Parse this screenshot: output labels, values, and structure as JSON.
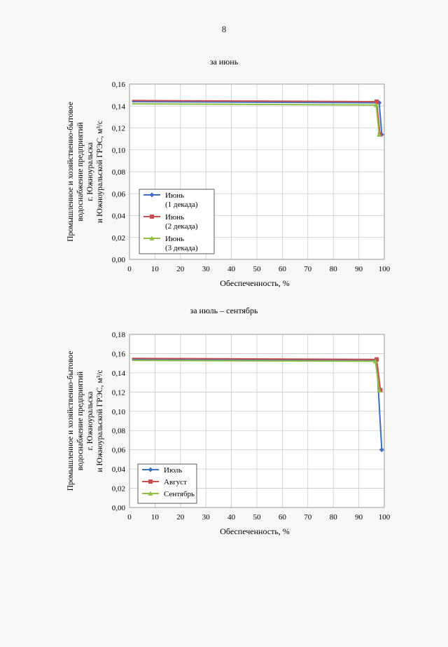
{
  "page_number": "8",
  "chart_data": [
    {
      "type": "line",
      "title": "за июнь",
      "xlabel": "Обеспеченность, %",
      "ylabel": [
        "Промышленное и хозяйственно-бытовое",
        "водоснабжение предприятий",
        "г. Южноуральска",
        "и Южноуральской ГРЭС, м³/с"
      ],
      "xlim": [
        0,
        100
      ],
      "ylim": [
        0,
        0.16
      ],
      "xticks": [
        0,
        10,
        20,
        30,
        40,
        50,
        60,
        70,
        80,
        90,
        100
      ],
      "xtick_labels": [
        "0",
        "10",
        "20",
        "30",
        "40",
        "50",
        "60",
        "70",
        "80",
        "90",
        "100"
      ],
      "yticks": [
        0,
        0.02,
        0.04,
        0.06,
        0.08,
        0.1,
        0.12,
        0.14,
        0.16
      ],
      "ytick_labels": [
        "0,00",
        "0,02",
        "0,04",
        "0,06",
        "0,08",
        "0,10",
        "0,12",
        "0,14",
        "0,16"
      ],
      "grid": true,
      "legend_position": "bottom-left",
      "series": [
        {
          "name_lines": [
            "Июнь",
            "(1 декада)"
          ],
          "color": "#3a6fc4",
          "marker": "diamond",
          "x": [
            1,
            98,
            99
          ],
          "y": [
            0.144,
            0.143,
            0.114
          ]
        },
        {
          "name_lines": [
            "Июнь",
            "(2 декада)"
          ],
          "color": "#c8504c",
          "marker": "square",
          "x": [
            1,
            97,
            98.3
          ],
          "y": [
            0.145,
            0.144,
            0.114
          ]
        },
        {
          "name_lines": [
            "Июнь",
            "(3 декада)"
          ],
          "color": "#8fbf45",
          "marker": "triangle",
          "x": [
            1,
            96.8,
            98
          ],
          "y": [
            0.142,
            0.141,
            0.114
          ]
        }
      ]
    },
    {
      "type": "line",
      "title": "за июль – сентябрь",
      "xlabel": "Обеспеченность, %",
      "ylabel": [
        "Промышленное и хозяйственно-бытовое",
        "водоснабжение предприятий",
        "г. Южноуральска",
        "и Южноуральской ГРЭС, м³/с"
      ],
      "xlim": [
        0,
        100
      ],
      "ylim": [
        0,
        0.18
      ],
      "xticks": [
        0,
        10,
        20,
        30,
        40,
        50,
        60,
        70,
        80,
        90,
        100
      ],
      "xtick_labels": [
        "0",
        "10",
        "20",
        "30",
        "40",
        "50",
        "60",
        "70",
        "80",
        "90",
        "100"
      ],
      "yticks": [
        0,
        0.02,
        0.04,
        0.06,
        0.08,
        0.1,
        0.12,
        0.14,
        0.16,
        0.18
      ],
      "ytick_labels": [
        "0,00",
        "0,02",
        "0,04",
        "0,06",
        "0,08",
        "0,10",
        "0,12",
        "0,14",
        "0,16",
        "0,18"
      ],
      "grid": true,
      "legend_position": "bottom-right",
      "series": [
        {
          "name_lines": [
            "Июль"
          ],
          "color": "#3a6fc4",
          "marker": "diamond",
          "x": [
            1,
            97,
            99
          ],
          "y": [
            0.154,
            0.153,
            0.06
          ]
        },
        {
          "name_lines": [
            "Август"
          ],
          "color": "#c8504c",
          "marker": "square",
          "x": [
            1,
            97,
            98.5
          ],
          "y": [
            0.155,
            0.154,
            0.122
          ]
        },
        {
          "name_lines": [
            "Сентябрь"
          ],
          "color": "#8fbf45",
          "marker": "triangle",
          "x": [
            1,
            96.5,
            98
          ],
          "y": [
            0.153,
            0.152,
            0.122
          ]
        }
      ]
    }
  ]
}
